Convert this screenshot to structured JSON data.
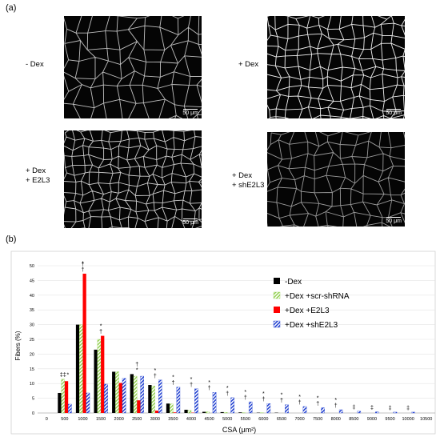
{
  "panel_a": {
    "label": "(a)",
    "panels": [
      {
        "condition": "- Dex",
        "scale": "50 μm"
      },
      {
        "condition": "+ Dex",
        "scale": "50 μm"
      },
      {
        "condition": "+ Dex\n+ E2L3",
        "scale": "50 μm"
      },
      {
        "condition": "+ Dex\n+ shE2L3",
        "scale": "50 μm"
      }
    ]
  },
  "panel_b": {
    "label": "(b)"
  },
  "chart_data": {
    "type": "bar",
    "xlabel": "CSA (μm²)",
    "ylabel": "Fibers (%)",
    "ylim": [
      0,
      50
    ],
    "yticks": [
      0,
      5,
      10,
      15,
      20,
      25,
      30,
      35,
      40,
      45,
      50
    ],
    "grid": true,
    "legend_position": "right",
    "categories": [
      "0",
      "500",
      "1000",
      "1500",
      "2000",
      "2500",
      "3000",
      "3500",
      "4000",
      "4500",
      "5000",
      "5500",
      "6000",
      "6500",
      "7000",
      "7500",
      "8000",
      "8500",
      "9000",
      "9500",
      "10000",
      "10500"
    ],
    "series": [
      {
        "name": "-Dex",
        "color": "#000000",
        "pattern": "solid",
        "values": [
          0,
          6.8,
          30,
          21.5,
          14,
          13.2,
          9.5,
          3.2,
          1.1,
          0.4,
          0.3,
          0.2,
          0.1,
          0.1,
          0,
          0,
          0,
          0,
          0,
          0,
          0,
          0
        ]
      },
      {
        "name": "+Dex +scr-shRNA",
        "color": "#92d050",
        "pattern": "hatch",
        "values": [
          0,
          11.5,
          30,
          25,
          14,
          12.5,
          9.2,
          3.1,
          0.9,
          0.4,
          0.2,
          0.1,
          0.1,
          0,
          0,
          0,
          0,
          0,
          0,
          0,
          0,
          0
        ]
      },
      {
        "name": "+Dex +E2L3",
        "color": "#ff0000",
        "pattern": "solid",
        "values": [
          0,
          10.8,
          47.3,
          26.2,
          10.2,
          4.3,
          0.8,
          0.2,
          0.1,
          0,
          0,
          0,
          0,
          0,
          0,
          0,
          0,
          0,
          0,
          0,
          0,
          0
        ]
      },
      {
        "name": "+Dex +shE2L3",
        "color": "#1f3fd0",
        "pattern": "hatch",
        "values": [
          0,
          3,
          6.8,
          9.8,
          11.8,
          12.5,
          11.2,
          8.8,
          8.2,
          7,
          5.2,
          3.8,
          3.2,
          2.8,
          2.2,
          1.8,
          1.1,
          0.6,
          0.4,
          0.3,
          0.3,
          0
        ]
      }
    ],
    "annotations": [
      {
        "category": "500",
        "text": "‡"
      },
      {
        "category": "500",
        "text": "‡"
      },
      {
        "category": "500",
        "text": "*"
      },
      {
        "category": "1000",
        "text": "†"
      },
      {
        "category": "1000",
        "text": "*"
      },
      {
        "category": "1000",
        "text": "†"
      },
      {
        "category": "1500",
        "text": "†"
      },
      {
        "category": "1500",
        "text": "*"
      },
      {
        "category": "2500",
        "text": "*"
      },
      {
        "category": "2500",
        "text": "†"
      },
      {
        "category": "3000",
        "text": "†"
      },
      {
        "category": "3000",
        "text": "*"
      },
      {
        "category": "3500",
        "text": "†"
      },
      {
        "category": "3500",
        "text": "*"
      },
      {
        "category": "4000",
        "text": "†"
      },
      {
        "category": "4000",
        "text": "*"
      },
      {
        "category": "4500",
        "text": "†"
      },
      {
        "category": "4500",
        "text": "*"
      },
      {
        "category": "5000",
        "text": "†"
      },
      {
        "category": "5000",
        "text": "*"
      },
      {
        "category": "5500",
        "text": "†"
      },
      {
        "category": "5500",
        "text": "*"
      },
      {
        "category": "6000",
        "text": "†"
      },
      {
        "category": "6000",
        "text": "*"
      },
      {
        "category": "6500",
        "text": "†"
      },
      {
        "category": "6500",
        "text": "*"
      },
      {
        "category": "7000",
        "text": "†"
      },
      {
        "category": "7000",
        "text": "*"
      },
      {
        "category": "7500",
        "text": "†"
      },
      {
        "category": "7500",
        "text": "*"
      },
      {
        "category": "8000",
        "text": "†"
      },
      {
        "category": "8000",
        "text": "*"
      },
      {
        "category": "8500",
        "text": "‡"
      },
      {
        "category": "9000",
        "text": "‡"
      },
      {
        "category": "9500",
        "text": "‡"
      },
      {
        "category": "10000",
        "text": "‡"
      }
    ]
  }
}
